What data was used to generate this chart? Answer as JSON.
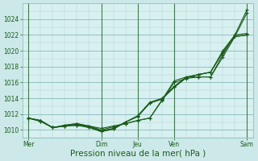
{
  "background_color": "#cce8e8",
  "plot_bg_color": "#d8f0f0",
  "grid_color_major": "#88b8b8",
  "grid_color_minor": "#aad0d0",
  "line_color": "#1a5c1a",
  "xlabel": "Pression niveau de la mer( hPa )",
  "ylim": [
    1009.0,
    1026.0
  ],
  "yticks": [
    1010,
    1012,
    1014,
    1016,
    1018,
    1020,
    1022,
    1024
  ],
  "ylabel_fontsize": 6,
  "xlabel_fontsize": 7.5,
  "xtick_labels": [
    "Mer",
    "Dim",
    "Jeu",
    "Ven",
    "Sam"
  ],
  "xtick_positions": [
    0,
    6,
    9,
    12,
    18
  ],
  "vline_positions": [
    0,
    6,
    9,
    12,
    18
  ],
  "total_points": 19,
  "series": [
    [
      1011.5,
      1011.2,
      1010.3,
      1010.6,
      1010.8,
      1010.5,
      1010.2,
      1010.5,
      1010.8,
      1011.2,
      1011.5,
      1013.8,
      1016.2,
      1016.7,
      1016.7,
      1016.7,
      1019.5,
      1022.0,
      1025.2
    ],
    [
      1011.5,
      1011.2,
      1010.3,
      1010.6,
      1010.8,
      1010.5,
      1010.0,
      1010.4,
      1010.8,
      1011.2,
      1011.5,
      1013.7,
      1016.0,
      1016.5,
      1016.7,
      1016.7,
      1019.2,
      1021.8,
      1024.8
    ],
    [
      1011.5,
      1011.2,
      1010.3,
      1010.5,
      1010.7,
      1010.4,
      1009.9,
      1010.2,
      1011.0,
      1011.8,
      1013.5,
      1014.0,
      1015.5,
      1016.7,
      1017.0,
      1017.3,
      1020.0,
      1022.0,
      1022.2
    ],
    [
      1011.5,
      1011.1,
      1010.3,
      1010.5,
      1010.6,
      1010.3,
      1009.8,
      1010.1,
      1011.0,
      1011.7,
      1013.4,
      1013.9,
      1015.4,
      1016.6,
      1017.0,
      1017.3,
      1019.8,
      1021.8,
      1022.0
    ],
    [
      1011.5,
      1011.1,
      1010.3,
      1010.5,
      1010.6,
      1010.4,
      1009.8,
      1010.1,
      1011.0,
      1011.7,
      1013.4,
      1013.9,
      1015.4,
      1016.6,
      1017.0,
      1017.3,
      1019.8,
      1021.8,
      1022.0
    ]
  ]
}
